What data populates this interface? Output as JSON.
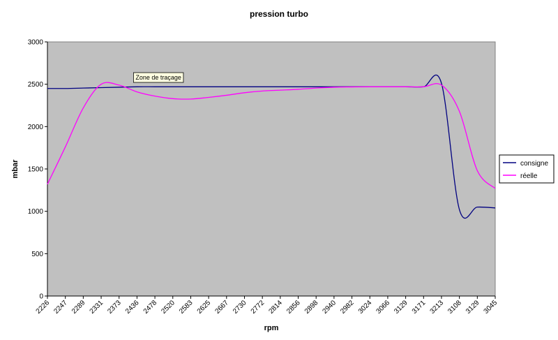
{
  "chart_data": {
    "type": "line",
    "title": "pression turbo",
    "xlabel": "rpm",
    "ylabel": "mbar",
    "ylim": [
      0,
      3000
    ],
    "yticks": [
      0,
      500,
      1000,
      1500,
      2000,
      2500,
      3000
    ],
    "grid": false,
    "plot_background": "#c0c0c0",
    "legend_position": "right",
    "categories": [
      "2226",
      "2247",
      "2289",
      "2331",
      "2373",
      "2436",
      "2478",
      "2520",
      "2583",
      "2625",
      "2667",
      "2730",
      "2772",
      "2814",
      "2856",
      "2898",
      "2940",
      "2982",
      "3024",
      "3066",
      "3129",
      "3171",
      "3213",
      "3108",
      "3129",
      "3045"
    ],
    "series": [
      {
        "name": "consigne",
        "color": "#000080",
        "values": [
          2450,
          2450,
          2455,
          2460,
          2465,
          2470,
          2470,
          2470,
          2470,
          2470,
          2470,
          2470,
          2470,
          2470,
          2470,
          2470,
          2470,
          2470,
          2470,
          2470,
          2470,
          2470,
          2510,
          1020,
          1050,
          1040
        ]
      },
      {
        "name": "réelle",
        "color": "#ff00ff",
        "values": [
          1320,
          1760,
          2220,
          2500,
          2490,
          2410,
          2360,
          2330,
          2325,
          2345,
          2370,
          2400,
          2420,
          2430,
          2440,
          2455,
          2465,
          2468,
          2470,
          2470,
          2470,
          2470,
          2490,
          2180,
          1480,
          1270
        ]
      }
    ],
    "annotations": [
      {
        "text": "Zone de traçage",
        "x": "2436",
        "y": 2530
      }
    ]
  }
}
